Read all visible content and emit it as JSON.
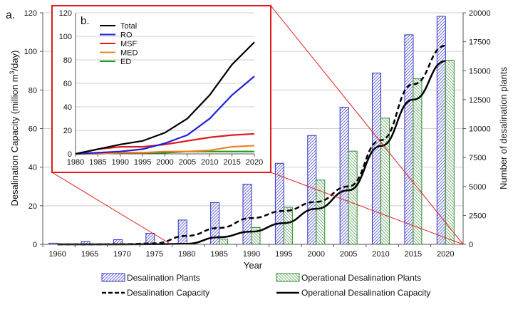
{
  "chart_data": [
    {
      "type": "bar+line",
      "panel_label": "a.",
      "xlabel": "Year",
      "ylabel_left": "Desalination Capacity (million m³/day)",
      "ylabel_left_parts": [
        "Desalination Capacity (million m",
        "3",
        "/day)"
      ],
      "ylabel_right": "Number of desalination plants",
      "categories": [
        "1960",
        "1965",
        "1970",
        "1975",
        "1980",
        "1985",
        "1990",
        "1995",
        "2000",
        "2005",
        "2010",
        "2015",
        "2020"
      ],
      "ylim_left": [
        0,
        120
      ],
      "yticks_left": [
        0,
        20,
        40,
        60,
        80,
        100,
        120
      ],
      "ylim_right": [
        0,
        20000
      ],
      "yticks_right": [
        0,
        2500,
        5000,
        7500,
        10000,
        12500,
        15000,
        17500,
        20000
      ],
      "grid": true,
      "bar_series": [
        {
          "name": "Desalination Plants",
          "color": "#3333cc",
          "values": [
            100,
            250,
            400,
            950,
            2100,
            3600,
            5200,
            7000,
            9400,
            11850,
            14800,
            18100,
            19700
          ]
        },
        {
          "name": "Operational Desalination Plants",
          "color": "#2e8b2e",
          "values": [
            0,
            0,
            0,
            0,
            50,
            450,
            1450,
            3200,
            5550,
            8050,
            10900,
            14300,
            15900
          ]
        }
      ],
      "line_series": [
        {
          "name": "Desalination Capacity",
          "style": "dashed",
          "color": "#000000",
          "values": [
            0,
            0,
            0.1,
            0.5,
            4.4,
            8.5,
            13.6,
            17.3,
            22,
            30,
            54,
            83,
            103
          ]
        },
        {
          "name": "Operational Desalination Capacity",
          "style": "solid",
          "color": "#000000",
          "values": [
            0,
            0,
            0,
            0.1,
            0.3,
            3.7,
            6.6,
            11,
            18.4,
            28,
            51,
            75,
            95
          ]
        }
      ],
      "legend_placement": "bottom"
    },
    {
      "type": "line",
      "panel_label": "b.",
      "x": [
        1980,
        1985,
        1990,
        1995,
        2000,
        2005,
        2010,
        2015,
        2020
      ],
      "xticks": [
        "1980",
        "1985",
        "1990",
        "1995",
        "2000",
        "2005",
        "2010",
        "2015",
        "2020"
      ],
      "ylim": [
        0,
        120
      ],
      "yticks": [
        0,
        20,
        40,
        60,
        80,
        100,
        120
      ],
      "grid": true,
      "legend_placement": "top-left",
      "series": [
        {
          "name": "Total",
          "color": "#000000",
          "values": [
            0,
            4,
            8,
            11,
            18,
            30,
            50,
            76,
            95
          ]
        },
        {
          "name": "RO",
          "color": "#1f1fdd",
          "values": [
            0,
            1,
            2,
            4,
            9,
            16,
            30,
            50,
            66
          ]
        },
        {
          "name": "MSF",
          "color": "#e01b1b",
          "values": [
            0,
            4,
            6,
            6,
            8,
            11,
            14,
            16,
            17
          ]
        },
        {
          "name": "MED",
          "color": "#f08020",
          "values": [
            0,
            0,
            1,
            1,
            2,
            2,
            3,
            6,
            7
          ]
        },
        {
          "name": "ED",
          "color": "#1e9a1e",
          "values": [
            0,
            0,
            1,
            1,
            1,
            2,
            2,
            2,
            2
          ]
        }
      ]
    }
  ],
  "inset_frame_color": "#e01b1b"
}
